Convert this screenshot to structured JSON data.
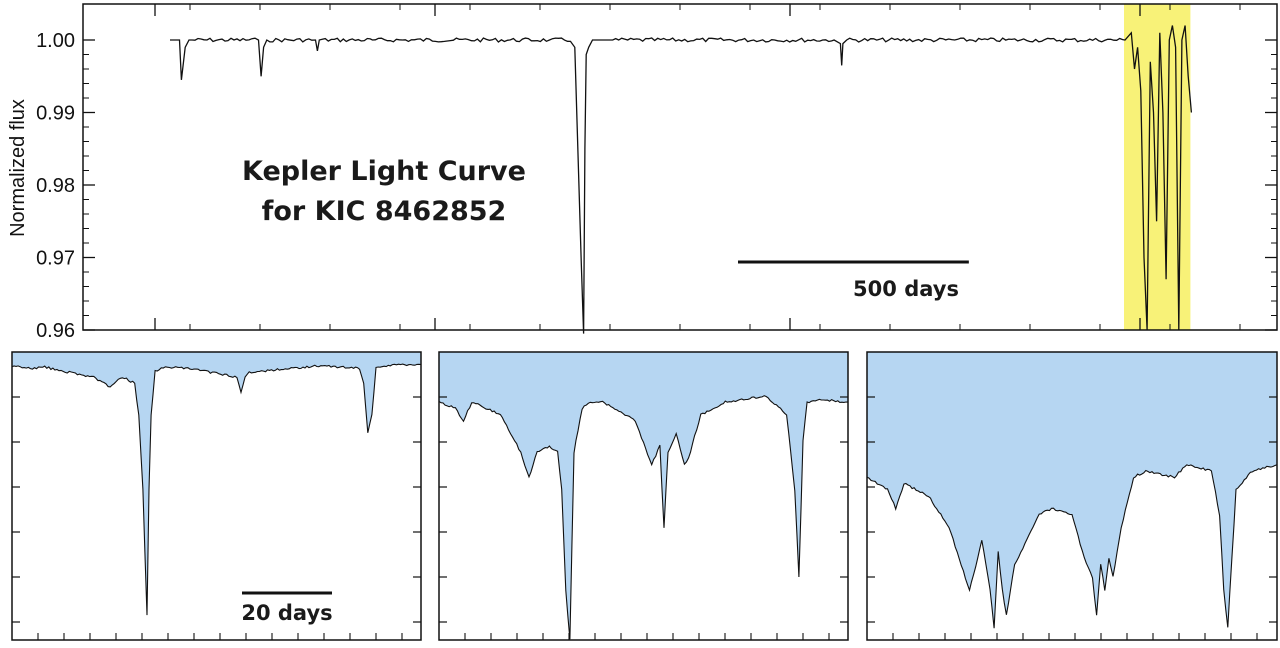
{
  "chart_data": [
    {
      "type": "line",
      "title": "Kepler Light Curve\nfor KIC 8462852",
      "title_lines": [
        "Kepler Light Curve",
        "for KIC 8462852"
      ],
      "ylabel": "Normalized flux",
      "ylim": [
        0.96,
        1.005
      ],
      "yticks": [
        "1.00",
        "0.99",
        "0.98",
        "0.97",
        "0.96"
      ],
      "ytick_values": [
        1.0,
        0.99,
        0.98,
        0.97,
        0.96
      ],
      "xlim": [
        0,
        1590
      ],
      "scale_bar": {
        "label": "500 days",
        "length_days": 500
      },
      "highlight": {
        "x_start_day": 1510,
        "x_end_day": 1615,
        "color": "#f8f278"
      },
      "series": [
        {
          "x": [
            0,
            15,
            18,
            24,
            30,
            140,
            144,
            148,
            153,
            230,
            233,
            236,
            320,
            600,
            640,
            650,
            654,
            656,
            658,
            662,
            668,
            680,
            700,
            1050,
            1060,
            1062,
            1064,
            1070,
            1510,
            1520,
            1525,
            1530,
            1535,
            1540,
            1545,
            1550,
            1555,
            1560,
            1565,
            1570,
            1575,
            1580,
            1585,
            1590,
            1595,
            1600,
            1605,
            1610,
            1615
          ],
          "y": [
            1.0,
            1.0,
            0.9945,
            0.999,
            1.0,
            1.0,
            0.995,
            0.999,
            1.0,
            1.0,
            0.9985,
            1.0,
            1.0,
            1.0,
            0.999,
            0.97,
            0.9595,
            0.985,
            0.998,
            0.999,
            1.0,
            1.0,
            1.0,
            1.0,
            0.9995,
            0.9965,
            0.9995,
            1.0,
            1.0,
            1.001,
            0.996,
            0.999,
            0.993,
            0.97,
            0.96,
            0.997,
            0.99,
            0.975,
            1.001,
            0.99,
            0.967,
            1.0,
            1.002,
            0.999,
            0.96,
            1.0,
            1.002,
            0.995,
            0.99
          ]
        }
      ]
    },
    {
      "type": "area",
      "ylim": [
        0.78,
        1.01
      ],
      "xlim": [
        0,
        100
      ],
      "scale_bar": {
        "label": "20 days",
        "length_days": 20
      },
      "x": [
        0,
        5,
        8,
        12,
        20,
        24,
        27,
        30,
        31,
        32,
        33,
        33.5,
        34,
        35,
        38,
        45,
        55,
        56,
        57,
        58,
        62,
        75,
        85,
        86,
        87,
        88,
        89,
        95,
        100
      ],
      "y": [
        0.999,
        0.997,
        0.998,
        0.995,
        0.99,
        0.982,
        0.99,
        0.985,
        0.96,
        0.9,
        0.8,
        0.9,
        0.96,
        0.995,
        0.998,
        0.996,
        0.99,
        0.978,
        0.99,
        0.994,
        0.995,
        0.999,
        0.997,
        0.985,
        0.945,
        0.96,
        0.998,
        1.0,
        1.0
      ]
    },
    {
      "type": "area",
      "ylim": [
        0.78,
        1.01
      ],
      "xlim": [
        0,
        100
      ],
      "x": [
        0,
        4,
        6,
        8,
        15,
        20,
        22,
        24,
        27,
        29,
        30,
        31,
        32,
        33,
        35,
        37,
        40,
        48,
        52,
        54,
        55,
        56,
        58,
        60,
        61,
        64,
        70,
        80,
        85,
        87,
        88,
        89,
        90,
        91,
        93,
        100
      ],
      "y": [
        0.97,
        0.965,
        0.955,
        0.97,
        0.96,
        0.93,
        0.91,
        0.93,
        0.935,
        0.93,
        0.9,
        0.82,
        0.78,
        0.93,
        0.965,
        0.97,
        0.97,
        0.955,
        0.92,
        0.935,
        0.87,
        0.93,
        0.945,
        0.92,
        0.925,
        0.96,
        0.97,
        0.975,
        0.96,
        0.9,
        0.83,
        0.94,
        0.97,
        0.97,
        0.972,
        0.97
      ]
    },
    {
      "type": "area",
      "ylim": [
        0.78,
        1.01
      ],
      "xlim": [
        0,
        100
      ],
      "x": [
        0,
        5,
        7,
        9,
        15,
        20,
        22,
        25,
        27,
        28,
        30,
        31,
        32,
        33,
        34,
        36,
        42,
        45,
        50,
        53,
        55,
        56,
        57,
        58,
        59,
        60,
        62,
        65,
        68,
        75,
        78,
        84,
        86,
        87,
        88,
        90,
        94,
        100
      ],
      "y": [
        0.91,
        0.9,
        0.885,
        0.905,
        0.895,
        0.87,
        0.85,
        0.82,
        0.845,
        0.86,
        0.82,
        0.79,
        0.85,
        0.82,
        0.8,
        0.84,
        0.88,
        0.885,
        0.88,
        0.845,
        0.83,
        0.8,
        0.84,
        0.82,
        0.845,
        0.83,
        0.87,
        0.91,
        0.915,
        0.91,
        0.92,
        0.915,
        0.88,
        0.82,
        0.79,
        0.9,
        0.915,
        0.92
      ]
    }
  ]
}
